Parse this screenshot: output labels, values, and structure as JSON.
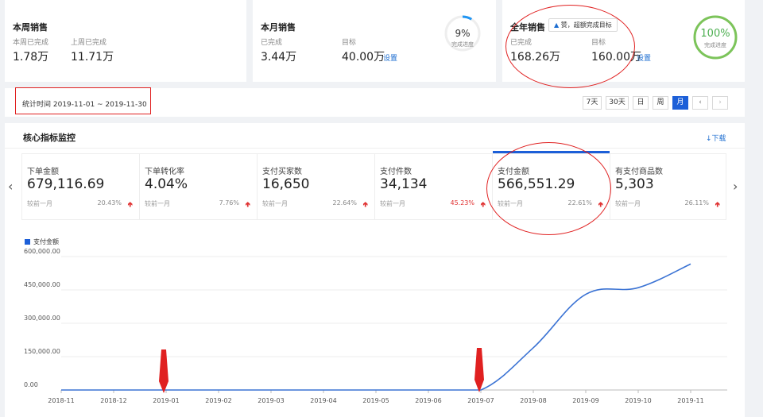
{
  "weekly": {
    "title": "本周销售",
    "done_label": "本周已完成",
    "done_value": "1.78万",
    "last_label": "上周已完成",
    "last_value": "11.71万"
  },
  "monthly": {
    "title": "本月销售",
    "done_label": "已完成",
    "done_value": "3.44万",
    "target_label": "目标",
    "target_value": "40.00万",
    "set_link": "设置",
    "progress_text": "9%",
    "progress_label": "完成进度",
    "progress_fraction": 0.09,
    "color": "#2196f3"
  },
  "yearly": {
    "title": "全年销售",
    "badge": "赞，超额完成目标",
    "badge_icon": "thumbs-up-icon",
    "done_label": "已完成",
    "done_value": "168.26万",
    "target_label": "目标",
    "target_value": "160.00万",
    "set_link": "设置",
    "progress_text": "100%",
    "progress_label": "完成进度",
    "progress_fraction": 1.0,
    "color": "#7cc45a"
  },
  "stat_range": "统计时间 2019-11-01 ~ 2019-11-30",
  "range_buttons": [
    "7天",
    "30天",
    "日",
    "周",
    "月"
  ],
  "range_active": "月",
  "prev_icon": "chevron-left-icon",
  "next_icon": "chevron-right-icon",
  "core": {
    "title": "核心指标监控",
    "download": "下载",
    "download_icon": "download-icon"
  },
  "metrics": [
    {
      "label": "下单金额",
      "value": "679,116.69",
      "compare": "较前一月",
      "pct": "20.43%",
      "pct_red": false
    },
    {
      "label": "下单转化率",
      "value": "4.04%",
      "compare": "较前一月",
      "pct": "7.76%",
      "pct_red": false
    },
    {
      "label": "支付买家数",
      "value": "16,650",
      "compare": "较前一月",
      "pct": "22.64%",
      "pct_red": false
    },
    {
      "label": "支付件数",
      "value": "34,134",
      "compare": "较前一月",
      "pct": "45.23%",
      "pct_red": true
    },
    {
      "label": "支付金额",
      "value": "566,551.29",
      "compare": "较前一月",
      "pct": "22.61%",
      "pct_red": false
    },
    {
      "label": "有支付商品数",
      "value": "5,303",
      "compare": "较前一月",
      "pct": "26.11%",
      "pct_red": false
    }
  ],
  "selected_metric": "支付金额",
  "chart_data": {
    "type": "line",
    "legend": "支付金额",
    "legend_placement": "top-left",
    "x": [
      "2018-11",
      "2018-12",
      "2019-01",
      "2019-02",
      "2019-03",
      "2019-04",
      "2019-05",
      "2019-06",
      "2019-07",
      "2019-08",
      "2019-09",
      "2019-10",
      "2019-11"
    ],
    "y_tick_labels": [
      "600,000.00",
      "450,000.00",
      "300,000.00",
      "150,000.00",
      "0.00"
    ],
    "y_ticks": [
      600000,
      450000,
      300000,
      150000,
      0
    ],
    "ylim": [
      0,
      600000
    ],
    "series": [
      {
        "name": "支付金额",
        "values": [
          0,
          0,
          0,
          0,
          0,
          0,
          0,
          0,
          0,
          190000,
          430000,
          460000,
          566551.29
        ]
      }
    ],
    "color": "#3b73d4",
    "grid": true
  }
}
